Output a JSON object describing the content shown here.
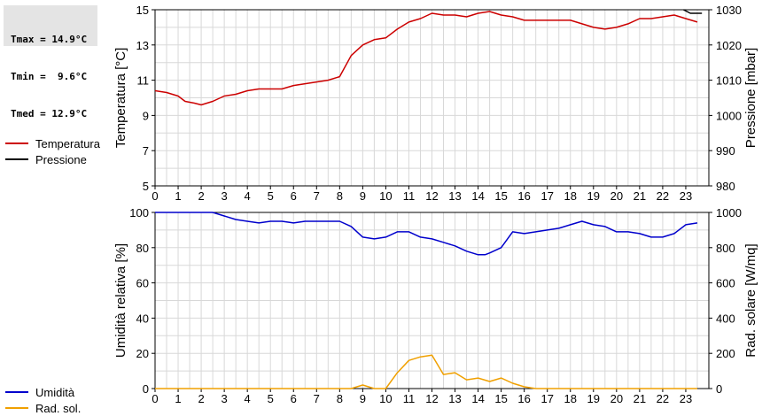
{
  "stats": {
    "tmax": "Tmax = 14.9°C",
    "tmin": "Tmin =  9.6°C",
    "tmed": "Tmed = 12.9°C"
  },
  "legend_top": [
    {
      "label": "Temperatura",
      "color": "#cc0000"
    },
    {
      "label": "Pressione",
      "color": "#000000"
    }
  ],
  "legend_bottom": [
    {
      "label": "Umidità",
      "color": "#0000cc"
    },
    {
      "label": "Rad. sol.",
      "color": "#f0a000"
    }
  ],
  "chart_data": [
    {
      "type": "line",
      "ylabel": "Temperatura [°C]",
      "y2label": "Pressione [mbar]",
      "xlim": [
        0,
        24
      ],
      "ylim": [
        5,
        15
      ],
      "y2lim": [
        980,
        1030
      ],
      "xticks": [
        "0",
        "1",
        "2",
        "3",
        "4",
        "5",
        "6",
        "7",
        "8",
        "9",
        "10",
        "11",
        "12",
        "13",
        "14",
        "15",
        "16",
        "17",
        "18",
        "19",
        "20",
        "21",
        "22",
        "23"
      ],
      "yticks": [
        "5",
        "7",
        "9",
        "11",
        "13",
        "15"
      ],
      "y2ticks": [
        "980",
        "990",
        "1000",
        "1010",
        "1020",
        "1030"
      ],
      "grid": true,
      "series": [
        {
          "name": "Temperatura",
          "color": "#cc0000",
          "axis": "left",
          "x": [
            0,
            0.5,
            1,
            1.3,
            1.7,
            2,
            2.5,
            3,
            3.5,
            4,
            4.5,
            5,
            5.5,
            6,
            6.5,
            7,
            7.5,
            8,
            8.5,
            9,
            9.5,
            10,
            10.5,
            11,
            11.5,
            12,
            12.5,
            13,
            13.5,
            14,
            14.5,
            15,
            15.5,
            16,
            16.5,
            17,
            17.5,
            18,
            18.5,
            19,
            19.5,
            20,
            20.5,
            21,
            21.5,
            22,
            22.5,
            23,
            23.5
          ],
          "values": [
            10.4,
            10.3,
            10.1,
            9.8,
            9.7,
            9.6,
            9.8,
            10.1,
            10.2,
            10.4,
            10.5,
            10.5,
            10.5,
            10.7,
            10.8,
            10.9,
            11.0,
            11.2,
            12.4,
            13.0,
            13.3,
            13.4,
            13.9,
            14.3,
            14.5,
            14.8,
            14.7,
            14.7,
            14.6,
            14.8,
            14.9,
            14.7,
            14.6,
            14.4,
            14.4,
            14.4,
            14.4,
            14.4,
            14.2,
            14.0,
            13.9,
            14.0,
            14.2,
            14.5,
            14.5,
            14.6,
            14.7,
            14.5,
            14.3
          ]
        },
        {
          "name": "Pressione",
          "color": "#000000",
          "axis": "right",
          "x": [
            22.9,
            23.2,
            23.7
          ],
          "values": [
            1030.0,
            1029.0,
            1029.0
          ]
        }
      ]
    },
    {
      "type": "line",
      "ylabel": "Umidità relativa [%]",
      "y2label": "Rad. solare [W/mq]",
      "xlim": [
        0,
        24
      ],
      "ylim": [
        0,
        100
      ],
      "y2lim": [
        0,
        1000
      ],
      "xticks": [
        "0",
        "1",
        "2",
        "3",
        "4",
        "5",
        "6",
        "7",
        "8",
        "9",
        "10",
        "11",
        "12",
        "13",
        "14",
        "15",
        "16",
        "17",
        "18",
        "19",
        "20",
        "21",
        "22",
        "23"
      ],
      "yticks": [
        "0",
        "20",
        "40",
        "60",
        "80",
        "100"
      ],
      "y2ticks": [
        "0",
        "200",
        "400",
        "600",
        "800",
        "1000"
      ],
      "grid": true,
      "series": [
        {
          "name": "Umidità",
          "color": "#0000cc",
          "axis": "left",
          "x": [
            0,
            1,
            2,
            2.5,
            3,
            3.5,
            4,
            4.5,
            5,
            5.5,
            6,
            6.5,
            7,
            7.5,
            8,
            8.5,
            9,
            9.5,
            10,
            10.5,
            11,
            11.5,
            12,
            12.5,
            13,
            13.5,
            14,
            14.3,
            14.5,
            15,
            15.5,
            16,
            16.5,
            17,
            17.5,
            18,
            18.5,
            19,
            19.5,
            20,
            20.5,
            21,
            21.5,
            22,
            22.5,
            23,
            23.5
          ],
          "values": [
            100,
            100,
            100,
            100,
            98,
            96,
            95,
            94,
            95,
            95,
            94,
            95,
            95,
            95,
            95,
            92,
            86,
            85,
            86,
            89,
            89,
            86,
            85,
            83,
            81,
            78,
            76,
            76,
            77,
            80,
            89,
            88,
            89,
            90,
            91,
            93,
            95,
            93,
            92,
            89,
            89,
            88,
            86,
            86,
            88,
            93,
            94
          ]
        },
        {
          "name": "Rad. sol.",
          "color": "#f0a000",
          "axis": "right",
          "x": [
            0,
            8.5,
            9,
            9.5,
            10,
            10.5,
            11,
            11.5,
            12,
            12.5,
            13,
            13.5,
            14,
            14.5,
            15,
            15.5,
            16,
            16.5,
            17,
            23.5
          ],
          "values": [
            0,
            0,
            20,
            0,
            0,
            90,
            160,
            180,
            190,
            80,
            90,
            50,
            60,
            40,
            60,
            30,
            10,
            0,
            0,
            0
          ]
        }
      ]
    }
  ]
}
